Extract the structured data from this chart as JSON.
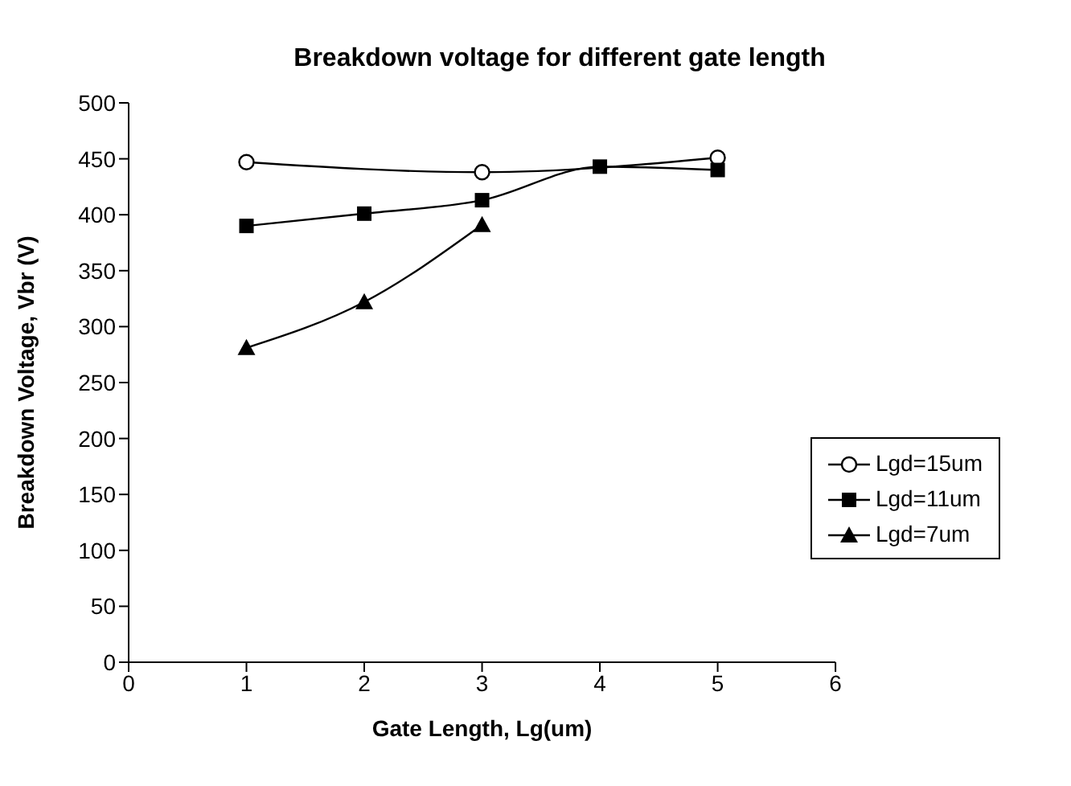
{
  "chart_data": {
    "type": "line",
    "title": "Breakdown voltage for different gate length",
    "xlabel": "Gate Length, Lg(um)",
    "ylabel": "Breakdown Voltage, Vbr (V)",
    "xlim": [
      0,
      6
    ],
    "xticks": [
      0,
      1,
      2,
      3,
      4,
      5,
      6
    ],
    "ylim": [
      0,
      500
    ],
    "yticks": [
      0,
      50,
      100,
      150,
      200,
      250,
      300,
      350,
      400,
      450,
      500
    ],
    "grid": false,
    "legend": "right",
    "series": [
      {
        "name": "Lgd=15um",
        "color": "#000000",
        "marker": "circle",
        "x": [
          1,
          3,
          5
        ],
        "values": [
          447,
          438,
          451
        ]
      },
      {
        "name": "Lgd=11um",
        "color": "#000000",
        "marker": "square",
        "x": [
          1,
          2,
          3,
          4,
          5
        ],
        "values": [
          390,
          401,
          413,
          443,
          440
        ]
      },
      {
        "name": "Lgd=7um",
        "color": "#000000",
        "marker": "triangle",
        "x": [
          1,
          2,
          3
        ],
        "values": [
          281,
          322,
          391
        ]
      }
    ]
  }
}
